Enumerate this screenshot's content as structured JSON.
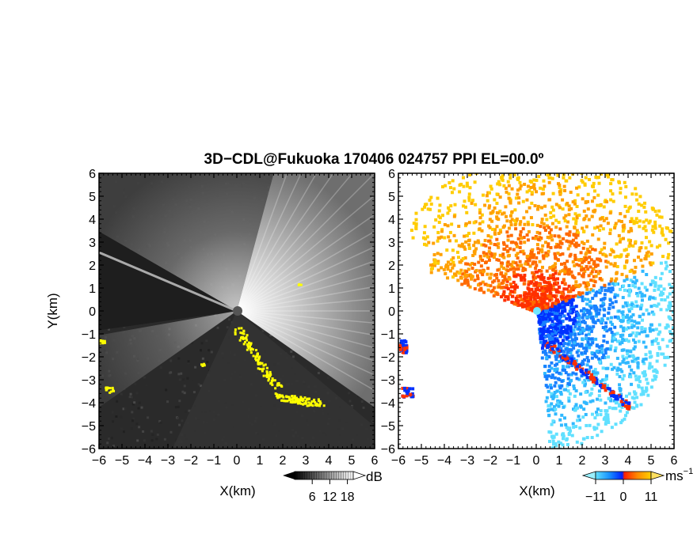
{
  "title": "3D−CDL@Fukuoka 170406 024757 PPI EL=00.0º",
  "chart_data": [
    {
      "type": "heatmap",
      "panel": "left",
      "field": "backscatter intensity",
      "xlabel": "X(km)",
      "ylabel": "Y(km)",
      "xlim": [
        -6,
        6
      ],
      "ylim": [
        -6,
        6
      ],
      "xticks": [
        "−6",
        "−5",
        "−4",
        "−3",
        "−2",
        "−1",
        "0",
        "1",
        "2",
        "3",
        "4",
        "5",
        "6"
      ],
      "yticks": [
        "6",
        "5",
        "4",
        "3",
        "2",
        "1",
        "0",
        "−1",
        "−2",
        "−3",
        "−4",
        "−5",
        "−6"
      ],
      "colorbar": {
        "unit": "dB",
        "ticks": [
          "6",
          "12",
          "18"
        ],
        "tick_values": [
          6,
          12,
          18
        ],
        "colormap": "grayscale"
      },
      "features": {
        "center_km": [
          0,
          0
        ],
        "bright_sector_deg": [
          -35,
          75
        ],
        "blocked_sector_deg": [
          150,
          245
        ],
        "highlight_color": "#ffff00",
        "highlight_desc": "strong echoes"
      },
      "grid": false
    },
    {
      "type": "heatmap",
      "panel": "right",
      "field": "Doppler velocity",
      "xlabel": "X(km)",
      "xlim": [
        -6,
        6
      ],
      "ylim": [
        -6,
        6
      ],
      "xticks": [
        "−6",
        "−5",
        "−4",
        "−3",
        "−2",
        "−1",
        "0",
        "1",
        "2",
        "3",
        "4",
        "5",
        "6"
      ],
      "yticks": [
        "6",
        "5",
        "4",
        "3",
        "2",
        "1",
        "0",
        "−1",
        "−2",
        "−3",
        "−4",
        "−5",
        "−6"
      ],
      "colorbar": {
        "unit": "ms",
        "unit_exponent": "−1",
        "ticks": [
          "−11",
          "0",
          "11"
        ],
        "tick_values": [
          -11,
          0,
          11
        ],
        "colormap": "blue-red diverging"
      },
      "features": {
        "center_km": [
          0,
          0
        ],
        "warm_sector_deg": [
          25,
          175
        ],
        "cool_sector_deg": [
          -85,
          25
        ],
        "warm_colors": [
          "#ff3000",
          "#ff6a00",
          "#ffa000",
          "#ffcc00"
        ],
        "cool_colors": [
          "#0030ff",
          "#1880ff",
          "#30b8ff",
          "#60e0ff"
        ]
      },
      "grid": false
    }
  ]
}
